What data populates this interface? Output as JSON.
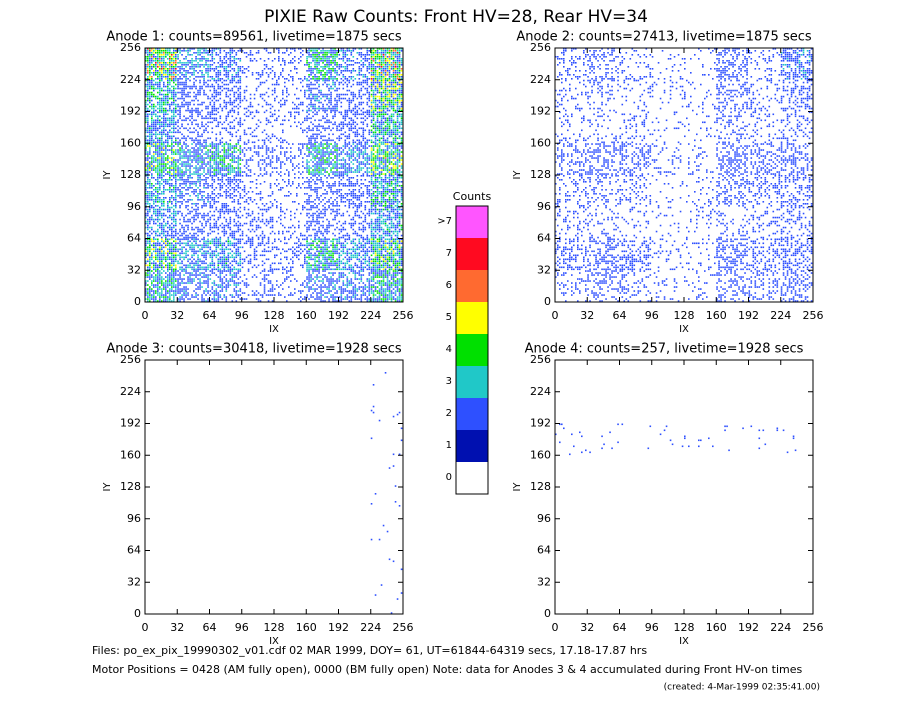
{
  "header": {
    "title": "PIXIE Raw Counts:  Front HV=28, Rear HV=34"
  },
  "chart_data": [
    {
      "type": "heatmap",
      "title": "Anode 1: counts=89561, livetime=1875 secs",
      "xlabel": "IX",
      "ylabel": "IY",
      "xlim": [
        0,
        256
      ],
      "ylim": [
        0,
        256
      ],
      "xticks": [
        0,
        32,
        64,
        96,
        128,
        160,
        192,
        224,
        256
      ],
      "yticks": [
        0,
        32,
        64,
        96,
        128,
        160,
        192,
        224,
        256
      ],
      "z": [
        [
          2.5,
          1.0,
          0.8,
          0.3,
          0.3,
          1.5,
          0.8,
          2.5
        ],
        [
          1.5,
          0.7,
          0.6,
          0.2,
          0.3,
          0.8,
          0.6,
          2.0
        ],
        [
          1.2,
          0.5,
          0.5,
          0.3,
          0.2,
          0.5,
          0.6,
          1.5
        ],
        [
          1.8,
          1.2,
          1.5,
          0.4,
          0.3,
          1.5,
          1.0,
          2.0
        ],
        [
          1.2,
          0.8,
          0.6,
          0.2,
          0.2,
          0.6,
          0.6,
          1.5
        ],
        [
          1.0,
          0.5,
          0.6,
          0.3,
          0.2,
          0.6,
          0.5,
          1.2
        ],
        [
          1.8,
          1.0,
          1.2,
          0.4,
          0.3,
          1.5,
          1.0,
          2.0
        ],
        [
          1.5,
          0.8,
          0.8,
          0.3,
          0.2,
          0.8,
          0.8,
          1.5
        ]
      ]
    },
    {
      "type": "heatmap",
      "title": "Anode 2: counts=27413, livetime=1875 secs",
      "xlabel": "IX",
      "ylabel": "IY",
      "xlim": [
        0,
        256
      ],
      "ylim": [
        0,
        256
      ],
      "xticks": [
        0,
        32,
        64,
        96,
        128,
        160,
        192,
        224,
        256
      ],
      "yticks": [
        0,
        32,
        64,
        96,
        128,
        160,
        192,
        224,
        256
      ],
      "z": [
        [
          0.3,
          0.4,
          0.2,
          0.1,
          0.1,
          0.5,
          0.2,
          0.8
        ],
        [
          0.2,
          0.3,
          0.2,
          0.1,
          0.1,
          0.4,
          0.2,
          0.5
        ],
        [
          0.15,
          0.2,
          0.2,
          0.1,
          0.1,
          0.3,
          0.2,
          0.3
        ],
        [
          0.4,
          0.5,
          0.6,
          0.15,
          0.1,
          0.6,
          0.4,
          0.5
        ],
        [
          0.3,
          0.3,
          0.3,
          0.1,
          0.1,
          0.4,
          0.3,
          0.4
        ],
        [
          0.2,
          0.2,
          0.2,
          0.1,
          0.1,
          0.2,
          0.2,
          0.3
        ],
        [
          0.5,
          0.6,
          0.5,
          0.15,
          0.15,
          0.6,
          0.4,
          0.6
        ],
        [
          0.3,
          0.4,
          0.3,
          0.1,
          0.1,
          0.4,
          0.3,
          0.5
        ]
      ]
    },
    {
      "type": "heatmap",
      "title": "Anode 3: counts=30418, livetime=1928 secs",
      "xlabel": "IX",
      "ylabel": "IY",
      "xlim": [
        0,
        256
      ],
      "ylim": [
        0,
        256
      ],
      "xticks": [
        0,
        32,
        64,
        96,
        128,
        160,
        192,
        224,
        256
      ],
      "yticks": [
        0,
        32,
        64,
        96,
        128,
        160,
        192,
        224,
        256
      ],
      "z": [
        [
          0,
          0,
          0,
          0,
          0,
          0,
          0,
          0.02
        ],
        [
          0,
          0,
          0,
          0,
          0,
          0,
          0,
          0.02
        ],
        [
          0,
          0,
          0,
          0,
          0,
          0,
          0,
          0.02
        ],
        [
          0,
          0,
          0,
          0,
          0,
          0,
          0,
          0.02
        ],
        [
          0,
          0,
          0,
          0,
          0,
          0,
          0,
          0.02
        ],
        [
          0,
          0,
          0,
          0,
          0,
          0,
          0,
          0.02
        ],
        [
          0,
          0,
          0,
          0,
          0,
          0,
          0,
          0.02
        ],
        [
          0,
          0,
          0,
          0,
          0,
          0,
          0,
          0.02
        ]
      ]
    },
    {
      "type": "heatmap",
      "title": "Anode 4: counts=257, livetime=1928 secs",
      "xlabel": "IX",
      "ylabel": "IY",
      "xlim": [
        0,
        256
      ],
      "ylim": [
        0,
        256
      ],
      "xticks": [
        0,
        32,
        64,
        96,
        128,
        160,
        192,
        224,
        256
      ],
      "yticks": [
        0,
        32,
        64,
        96,
        128,
        160,
        192,
        224,
        256
      ],
      "z": [
        [
          0,
          0,
          0,
          0,
          0,
          0,
          0,
          0
        ],
        [
          0,
          0,
          0,
          0,
          0,
          0,
          0,
          0
        ],
        [
          0.03,
          0.03,
          0.03,
          0.03,
          0.03,
          0.03,
          0.03,
          0.03
        ],
        [
          0,
          0,
          0,
          0,
          0,
          0,
          0,
          0
        ],
        [
          0,
          0,
          0,
          0,
          0,
          0,
          0,
          0
        ],
        [
          0,
          0,
          0,
          0,
          0,
          0,
          0,
          0
        ],
        [
          0,
          0,
          0,
          0,
          0,
          0,
          0,
          0
        ],
        [
          0,
          0,
          0,
          0,
          0,
          0,
          0,
          0
        ]
      ]
    },
    {
      "type": "colorbar",
      "title": "Counts",
      "ticks": [
        0,
        1,
        2,
        3,
        4,
        5,
        6,
        7,
        {
          "value": 8,
          "label": ">7"
        }
      ],
      "colors": [
        "#ffffff",
        "#0010b0",
        "#2e50ff",
        "#20c8c8",
        "#00e000",
        "#ffff00",
        "#ff6a30",
        "#ff0a20",
        "#ff55ff"
      ]
    }
  ],
  "footer": {
    "files": "Files: po_ex_pix_19990302_v01.cdf    02 MAR 1999, DOY= 61, UT=61844-64319 secs, 17.18-17.87 hrs",
    "motor": "Motor Positions = 0428 (AM fully open), 0000 (BM fully open)    Note: data for Anodes 3 & 4 accumulated during Front HV-on times",
    "created": "(created:  4-Mar-1999 02:35:41.00)"
  }
}
